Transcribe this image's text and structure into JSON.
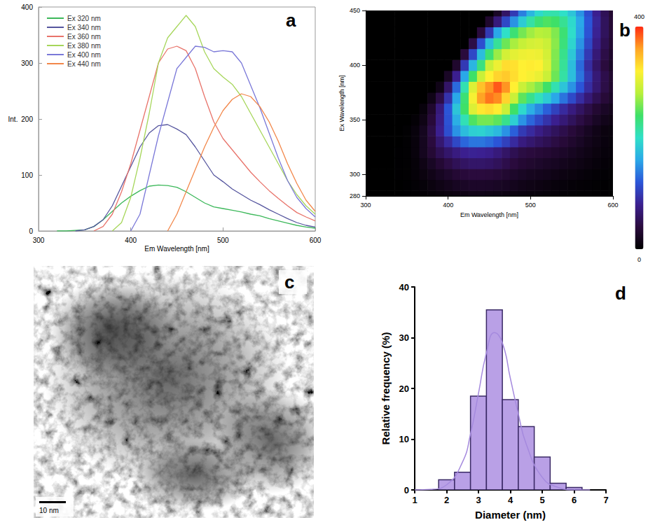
{
  "chart_data": [
    {
      "panel": "a",
      "type": "line",
      "x_label": "Em Wavelength [nm]",
      "y_label": "Int.",
      "x": [
        300,
        310,
        320,
        330,
        340,
        350,
        360,
        370,
        380,
        390,
        400,
        410,
        420,
        430,
        440,
        450,
        460,
        470,
        480,
        490,
        500,
        510,
        520,
        530,
        540,
        550,
        560,
        570,
        580,
        590,
        600
      ],
      "series": [
        {
          "name": "Ex 320 nm",
          "color": "#3cb85a",
          "values": [
            null,
            null,
            0,
            0,
            1,
            2,
            8,
            20,
            35,
            50,
            62,
            72,
            80,
            82,
            81,
            78,
            70,
            60,
            50,
            43,
            40,
            37,
            34,
            30,
            27,
            22,
            18,
            14,
            10,
            7,
            5
          ]
        },
        {
          "name": "Ex 340 nm",
          "color": "#55559e",
          "values": [
            null,
            null,
            null,
            null,
            0,
            2,
            8,
            20,
            45,
            80,
            115,
            150,
            175,
            188,
            190,
            182,
            172,
            150,
            125,
            100,
            88,
            75,
            65,
            55,
            47,
            38,
            30,
            22,
            15,
            10,
            7
          ]
        },
        {
          "name": "Ex 360 nm",
          "color": "#e8736a",
          "values": [
            null,
            null,
            null,
            null,
            null,
            null,
            0,
            8,
            30,
            70,
            120,
            180,
            240,
            300,
            325,
            330,
            322,
            290,
            240,
            195,
            165,
            145,
            125,
            105,
            88,
            72,
            58,
            45,
            33,
            25,
            18
          ]
        },
        {
          "name": "Ex 380 nm",
          "color": "#a6d65a",
          "values": [
            null,
            null,
            null,
            null,
            null,
            null,
            null,
            null,
            0,
            15,
            60,
            130,
            210,
            300,
            345,
            365,
            385,
            365,
            320,
            290,
            275,
            262,
            240,
            210,
            180,
            150,
            120,
            90,
            65,
            45,
            30
          ]
        },
        {
          "name": "Ex 400 nm",
          "color": "#7a78d8",
          "values": [
            null,
            null,
            null,
            null,
            null,
            null,
            null,
            null,
            null,
            null,
            0,
            30,
            100,
            170,
            230,
            290,
            310,
            330,
            328,
            320,
            322,
            320,
            300,
            260,
            220,
            175,
            130,
            90,
            60,
            40,
            25
          ]
        },
        {
          "name": "Ex 440 nm",
          "color": "#f2874a",
          "values": [
            null,
            null,
            null,
            null,
            null,
            null,
            null,
            null,
            null,
            null,
            null,
            null,
            null,
            null,
            0,
            30,
            70,
            110,
            150,
            185,
            215,
            235,
            245,
            240,
            222,
            195,
            160,
            120,
            85,
            55,
            35
          ]
        }
      ],
      "xlim": [
        300,
        600
      ],
      "xticks": [
        300,
        400,
        500,
        600
      ],
      "ylim": [
        0,
        400
      ],
      "yticks": [
        0,
        100,
        200,
        300,
        400
      ],
      "legend": "top-left",
      "grid": false
    },
    {
      "panel": "b",
      "type": "heatmap",
      "x_label": "Em Wavelength [nm]",
      "y_label": "Ex Wavelength [nm]",
      "x": [
        300,
        310,
        320,
        330,
        340,
        350,
        360,
        370,
        380,
        390,
        400,
        410,
        420,
        430,
        440,
        450,
        460,
        470,
        480,
        490,
        500,
        510,
        520,
        530,
        540,
        550,
        560,
        570,
        580,
        590,
        600
      ],
      "y": [
        280,
        290,
        300,
        310,
        320,
        330,
        340,
        350,
        360,
        370,
        380,
        390,
        400,
        410,
        420,
        430,
        440,
        450
      ],
      "cells": [
        [
          0,
          0,
          0,
          0,
          0,
          1,
          2,
          4,
          6,
          8,
          10,
          12,
          14,
          15,
          15,
          14,
          13,
          12,
          10,
          9,
          8,
          7,
          6,
          5,
          4,
          3,
          2,
          2,
          1,
          1,
          0
        ],
        [
          0,
          0,
          0,
          0,
          0,
          1,
          3,
          6,
          10,
          14,
          18,
          22,
          25,
          27,
          27,
          26,
          24,
          22,
          19,
          16,
          14,
          12,
          10,
          8,
          7,
          5,
          4,
          3,
          2,
          1,
          1
        ],
        [
          0,
          0,
          0,
          0,
          1,
          2,
          5,
          10,
          16,
          22,
          28,
          34,
          38,
          40,
          40,
          39,
          36,
          32,
          28,
          24,
          21,
          19,
          17,
          14,
          12,
          10,
          8,
          6,
          4,
          3,
          2
        ],
        [
          0,
          0,
          0,
          0,
          1,
          2,
          6,
          14,
          24,
          34,
          44,
          52,
          58,
          61,
          61,
          59,
          54,
          47,
          40,
          34,
          31,
          28,
          25,
          22,
          19,
          16,
          13,
          10,
          7,
          5,
          3
        ],
        [
          0,
          0,
          0,
          0,
          1,
          2,
          8,
          20,
          35,
          50,
          62,
          72,
          80,
          82,
          81,
          78,
          70,
          60,
          50,
          43,
          40,
          37,
          34,
          30,
          27,
          22,
          18,
          14,
          10,
          7,
          5
        ],
        [
          0,
          0,
          0,
          0,
          0,
          2,
          8,
          20,
          40,
          65,
          88,
          110,
          128,
          136,
          136,
          130,
          120,
          105,
          88,
          72,
          64,
          56,
          50,
          43,
          37,
          30,
          24,
          18,
          13,
          9,
          6
        ],
        [
          0,
          0,
          0,
          0,
          0,
          2,
          8,
          20,
          45,
          80,
          115,
          150,
          175,
          188,
          190,
          182,
          172,
          150,
          125,
          100,
          88,
          75,
          65,
          55,
          47,
          38,
          30,
          22,
          15,
          10,
          7
        ],
        [
          0,
          0,
          0,
          0,
          0,
          0,
          4,
          14,
          38,
          75,
          118,
          165,
          208,
          245,
          258,
          258,
          250,
          225,
          188,
          150,
          128,
          110,
          95,
          80,
          68,
          55,
          44,
          34,
          24,
          17,
          12
        ],
        [
          0,
          0,
          0,
          0,
          0,
          0,
          0,
          8,
          30,
          70,
          120,
          180,
          240,
          300,
          325,
          330,
          322,
          290,
          240,
          195,
          165,
          145,
          125,
          105,
          88,
          72,
          58,
          45,
          33,
          25,
          18
        ],
        [
          0,
          0,
          0,
          0,
          0,
          0,
          0,
          0,
          15,
          45,
          95,
          160,
          235,
          315,
          360,
          375,
          368,
          335,
          290,
          250,
          225,
          205,
          185,
          160,
          135,
          112,
          90,
          68,
          50,
          37,
          26
        ],
        [
          0,
          0,
          0,
          0,
          0,
          0,
          0,
          0,
          0,
          15,
          60,
          130,
          210,
          300,
          345,
          365,
          385,
          365,
          320,
          290,
          275,
          262,
          240,
          210,
          180,
          150,
          120,
          90,
          65,
          45,
          30
        ],
        [
          0,
          0,
          0,
          0,
          0,
          0,
          0,
          0,
          0,
          0,
          25,
          80,
          160,
          240,
          290,
          320,
          335,
          340,
          330,
          320,
          315,
          308,
          290,
          255,
          215,
          175,
          135,
          98,
          68,
          47,
          31
        ],
        [
          0,
          0,
          0,
          0,
          0,
          0,
          0,
          0,
          0,
          0,
          0,
          30,
          100,
          170,
          230,
          290,
          310,
          330,
          328,
          320,
          322,
          320,
          300,
          260,
          220,
          175,
          130,
          90,
          60,
          40,
          25
        ],
        [
          0,
          0,
          0,
          0,
          0,
          0,
          0,
          0,
          0,
          0,
          0,
          0,
          40,
          110,
          175,
          235,
          270,
          295,
          305,
          310,
          312,
          310,
          295,
          262,
          225,
          182,
          140,
          100,
          68,
          45,
          29
        ],
        [
          0,
          0,
          0,
          0,
          0,
          0,
          0,
          0,
          0,
          0,
          0,
          0,
          0,
          45,
          115,
          175,
          220,
          255,
          275,
          288,
          295,
          298,
          290,
          265,
          232,
          192,
          150,
          110,
          76,
          50,
          32
        ],
        [
          0,
          0,
          0,
          0,
          0,
          0,
          0,
          0,
          0,
          0,
          0,
          0,
          0,
          0,
          40,
          100,
          160,
          200,
          235,
          258,
          272,
          280,
          278,
          262,
          235,
          198,
          158,
          118,
          82,
          55,
          35
        ],
        [
          0,
          0,
          0,
          0,
          0,
          0,
          0,
          0,
          0,
          0,
          0,
          0,
          0,
          0,
          0,
          30,
          70,
          110,
          150,
          185,
          215,
          235,
          245,
          240,
          222,
          195,
          160,
          120,
          85,
          55,
          35
        ],
        [
          0,
          0,
          0,
          0,
          0,
          0,
          0,
          0,
          0,
          0,
          0,
          0,
          0,
          0,
          0,
          0,
          25,
          60,
          100,
          140,
          170,
          195,
          210,
          212,
          200,
          180,
          150,
          115,
          80,
          52,
          33
        ]
      ],
      "xlim": [
        300,
        600
      ],
      "xticks": [
        300,
        400,
        500,
        600
      ],
      "ylim": [
        280,
        450
      ],
      "yticks": [
        280,
        300,
        350,
        400,
        450
      ],
      "colorbar_range": [
        0,
        400
      ],
      "colorbar_ticks": [
        0,
        400
      ]
    },
    {
      "panel": "c",
      "type": "image",
      "scale_bar": "10 nm"
    },
    {
      "panel": "d",
      "type": "histogram",
      "x_label": "Diameter (nm)",
      "y_label": "Relative frequency (%)",
      "series": [
        {
          "type": "bar",
          "color": "#b9a0e6",
          "bins": [
            1.75,
            2.25,
            2.75,
            3.25,
            3.75,
            4.25,
            4.75,
            5.25,
            5.75,
            6.25
          ],
          "values": [
            2,
            3.5,
            18.5,
            35.5,
            17.8,
            12.5,
            6.5,
            1.3,
            0.5
          ]
        },
        {
          "type": "line",
          "color": "#a58ade",
          "x": [
            1,
            1.5,
            2,
            2.5,
            2.75,
            3,
            3.25,
            3.5,
            3.75,
            4,
            4.25,
            4.5,
            5,
            5.5,
            6,
            6.5
          ],
          "values": [
            0,
            0.1,
            1,
            5.5,
            11,
            19,
            27,
            31,
            29,
            22,
            15,
            9,
            2.5,
            0.5,
            0,
            0
          ]
        }
      ],
      "xlim": [
        1,
        7
      ],
      "xticks": [
        1,
        2,
        3,
        4,
        5,
        6,
        7
      ],
      "ylim": [
        0,
        40
      ],
      "yticks": [
        0,
        10,
        20,
        30,
        40
      ],
      "grid": false
    }
  ]
}
